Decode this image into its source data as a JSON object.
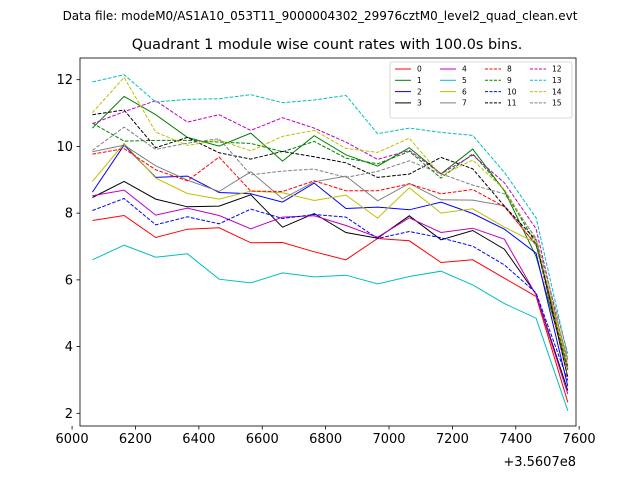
{
  "file_label": "Data file: modeM0/AS1A10_053T11_9000004302_29976cztM0_level2_quad_clean.evt",
  "chart_data": {
    "type": "line",
    "title": "Quadrant 1 module wise count rates with 100.0s bins.",
    "xlabel": "",
    "ylabel": "",
    "x_offset_label": "+3.5607e8",
    "xlim": [
      6025,
      7590
    ],
    "ylim": [
      1.62,
      12.65
    ],
    "x_ticks": [
      6000,
      6200,
      6400,
      6600,
      6800,
      7000,
      7200,
      7400,
      7600
    ],
    "y_ticks": [
      2,
      4,
      6,
      8,
      10,
      12
    ],
    "legend_position": "top-right",
    "x": [
      6064,
      6164,
      6264,
      6364,
      6464,
      6564,
      6664,
      6764,
      6864,
      6964,
      7064,
      7164,
      7264,
      7364,
      7464,
      7564
    ],
    "series": [
      {
        "name": "0",
        "color": "#ff0000",
        "dash": "solid",
        "values": [
          7.78,
          7.93,
          7.27,
          7.52,
          7.56,
          7.11,
          7.12,
          6.84,
          6.6,
          7.24,
          7.17,
          6.52,
          6.6,
          6.05,
          5.5,
          2.33
        ]
      },
      {
        "name": "1",
        "color": "#008000",
        "dash": "solid",
        "values": [
          10.55,
          11.5,
          10.95,
          10.27,
          10.01,
          10.4,
          9.56,
          10.32,
          9.75,
          9.41,
          9.96,
          9.18,
          9.92,
          8.67,
          6.7,
          3.3
        ]
      },
      {
        "name": "2",
        "color": "#0000ff",
        "dash": "solid",
        "values": [
          8.63,
          10.04,
          9.07,
          9.11,
          8.62,
          8.58,
          8.33,
          8.9,
          8.14,
          8.18,
          8.1,
          8.33,
          7.99,
          7.52,
          6.8,
          2.81
        ]
      },
      {
        "name": "3",
        "color": "#000000",
        "dash": "solid",
        "values": [
          8.47,
          8.95,
          8.42,
          8.19,
          8.21,
          8.55,
          7.58,
          7.99,
          7.42,
          7.25,
          7.92,
          7.2,
          7.48,
          6.92,
          5.57,
          2.68
        ]
      },
      {
        "name": "4",
        "color": "#bf00bf",
        "dash": "solid",
        "values": [
          8.52,
          8.69,
          7.94,
          8.15,
          7.93,
          7.53,
          7.88,
          7.92,
          7.63,
          7.28,
          7.86,
          7.42,
          7.55,
          7.22,
          5.55,
          2.58
        ]
      },
      {
        "name": "5",
        "color": "#00bfbf",
        "dash": "solid",
        "values": [
          6.6,
          7.04,
          6.68,
          6.78,
          6.02,
          5.91,
          6.21,
          6.09,
          6.14,
          5.88,
          6.1,
          6.26,
          5.85,
          5.29,
          4.85,
          2.08
        ]
      },
      {
        "name": "6",
        "color": "#bfbf00",
        "dash": "solid",
        "values": [
          8.95,
          10.09,
          9.05,
          8.59,
          8.42,
          8.66,
          8.61,
          8.38,
          8.54,
          7.85,
          8.76,
          8.0,
          8.13,
          7.58,
          7.11,
          3.35
        ]
      },
      {
        "name": "7",
        "color": "#808080",
        "dash": "solid",
        "values": [
          9.84,
          10.04,
          9.42,
          8.99,
          8.65,
          9.24,
          8.43,
          8.94,
          9.11,
          8.37,
          8.89,
          8.4,
          8.39,
          8.22,
          7.03,
          3.61
        ]
      },
      {
        "name": "8",
        "color": "#ff0000",
        "dash": "dashed",
        "values": [
          9.77,
          9.93,
          9.3,
          8.97,
          9.68,
          8.66,
          8.65,
          8.97,
          8.67,
          8.67,
          8.88,
          8.58,
          8.71,
          8.19,
          7.06,
          3.09
        ]
      },
      {
        "name": "9",
        "color": "#008000",
        "dash": "dashed",
        "values": [
          10.7,
          10.16,
          10.18,
          10.18,
          10.13,
          10.09,
          9.84,
          10.15,
          9.65,
          9.48,
          9.85,
          9.05,
          9.78,
          8.7,
          7.07,
          3.31
        ]
      },
      {
        "name": "10",
        "color": "#0000ff",
        "dash": "dashed",
        "values": [
          8.08,
          8.44,
          7.65,
          7.89,
          7.68,
          8.12,
          7.84,
          7.96,
          7.88,
          7.24,
          7.45,
          7.26,
          7.01,
          6.45,
          5.61,
          2.98
        ]
      },
      {
        "name": "11",
        "color": "#000000",
        "dash": "dashed",
        "values": [
          10.95,
          11.09,
          9.96,
          10.27,
          9.81,
          9.62,
          9.85,
          9.69,
          9.51,
          9.07,
          9.17,
          9.67,
          9.33,
          8.21,
          7.19,
          3.07
        ]
      },
      {
        "name": "12",
        "color": "#bf00bf",
        "dash": "dashed",
        "values": [
          10.68,
          11.04,
          11.37,
          10.73,
          10.95,
          10.48,
          10.86,
          10.55,
          10.13,
          9.61,
          9.88,
          9.18,
          9.74,
          8.91,
          7.53,
          3.42
        ]
      },
      {
        "name": "13",
        "color": "#00bfbf",
        "dash": "dashed",
        "values": [
          11.93,
          12.15,
          11.33,
          11.41,
          11.43,
          11.55,
          11.31,
          11.39,
          11.53,
          10.38,
          10.55,
          10.42,
          10.33,
          9.22,
          7.86,
          3.71
        ]
      },
      {
        "name": "14",
        "color": "#bfbf00",
        "dash": "dashed",
        "values": [
          11.01,
          12.07,
          10.43,
          10.03,
          10.19,
          9.87,
          10.3,
          10.48,
          9.94,
          9.82,
          10.25,
          9.13,
          9.59,
          8.71,
          7.2,
          3.5
        ]
      },
      {
        "name": "15",
        "color": "#808080",
        "dash": "dashed",
        "values": [
          9.88,
          10.58,
          9.91,
          10.1,
          10.23,
          9.15,
          9.26,
          9.32,
          9.07,
          9.25,
          9.57,
          9.18,
          8.84,
          8.58,
          7.25,
          3.8
        ]
      }
    ]
  }
}
